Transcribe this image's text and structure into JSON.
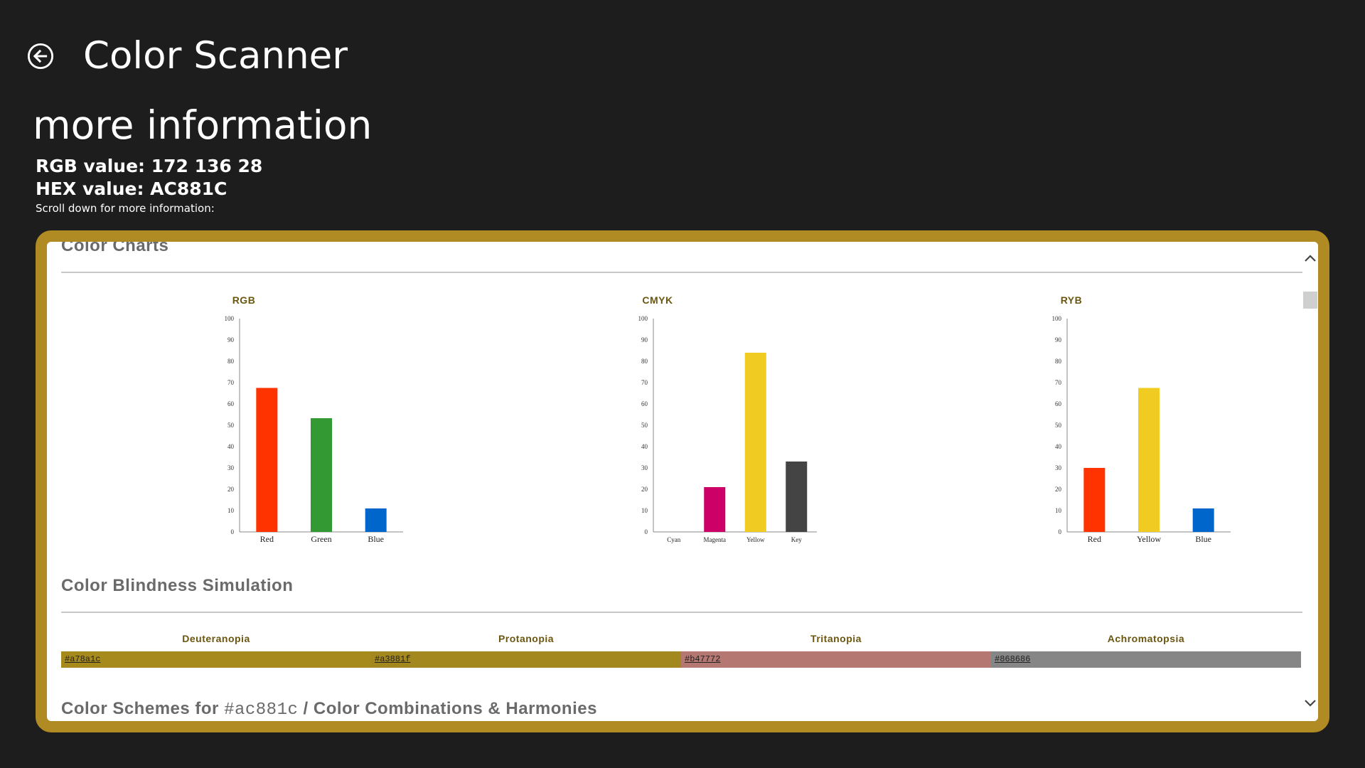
{
  "header": {
    "app_title": "Color Scanner",
    "back_icon": "back-arrow-icon",
    "subtitle": "more information",
    "rgb_text": "RGB value: 172 136 28",
    "hex_text": "HEX value: AC881C",
    "scroll_hint": "Scroll down for more information:"
  },
  "colors": {
    "background": "#1d1d1d",
    "frame": "#b08a22",
    "chart_title": "#6b5610",
    "section_title": "#6a6a6a"
  },
  "sections": {
    "color_charts": "Color Charts",
    "color_blindness": "Color Blindness Simulation",
    "schemes_prefix": "Color Schemes for ",
    "schemes_hex": "#ac881c",
    "schemes_suffix": " / Color Combinations & Harmonies"
  },
  "chart_data": [
    {
      "type": "bar",
      "title": "RGB",
      "categories": [
        "Red",
        "Green",
        "Blue"
      ],
      "values": [
        67.5,
        53.3,
        11
      ],
      "colors": [
        "#ff3300",
        "#339933",
        "#0066cc"
      ],
      "ylim": [
        0,
        100
      ],
      "yticks": [
        0,
        10,
        20,
        30,
        40,
        50,
        60,
        70,
        80,
        90,
        100
      ]
    },
    {
      "type": "bar",
      "title": "CMYK",
      "categories": [
        "Cyan",
        "Magenta",
        "Yellow",
        "Key"
      ],
      "values": [
        0,
        21,
        84,
        33
      ],
      "colors": [
        "#0099cc",
        "#cc0066",
        "#f0cc22",
        "#444444"
      ],
      "ylim": [
        0,
        100
      ],
      "yticks": [
        0,
        10,
        20,
        30,
        40,
        50,
        60,
        70,
        80,
        90,
        100
      ]
    },
    {
      "type": "bar",
      "title": "RYB",
      "categories": [
        "Red",
        "Yellow",
        "Blue"
      ],
      "values": [
        30,
        67.5,
        11
      ],
      "colors": [
        "#ff3300",
        "#f0cc22",
        "#0066cc"
      ],
      "ylim": [
        0,
        100
      ],
      "yticks": [
        0,
        10,
        20,
        30,
        40,
        50,
        60,
        70,
        80,
        90,
        100
      ]
    }
  ],
  "color_blindness": [
    {
      "name": "Deuteranopia",
      "hex": "#a78a1c"
    },
    {
      "name": "Protanopia",
      "hex": "#a3881f"
    },
    {
      "name": "Tritanopia",
      "hex": "#b47772"
    },
    {
      "name": "Achromatopsia",
      "hex": "#868686"
    }
  ],
  "scrollbar": {
    "up_icon": "chevron-up-icon",
    "down_icon": "chevron-down-icon"
  }
}
